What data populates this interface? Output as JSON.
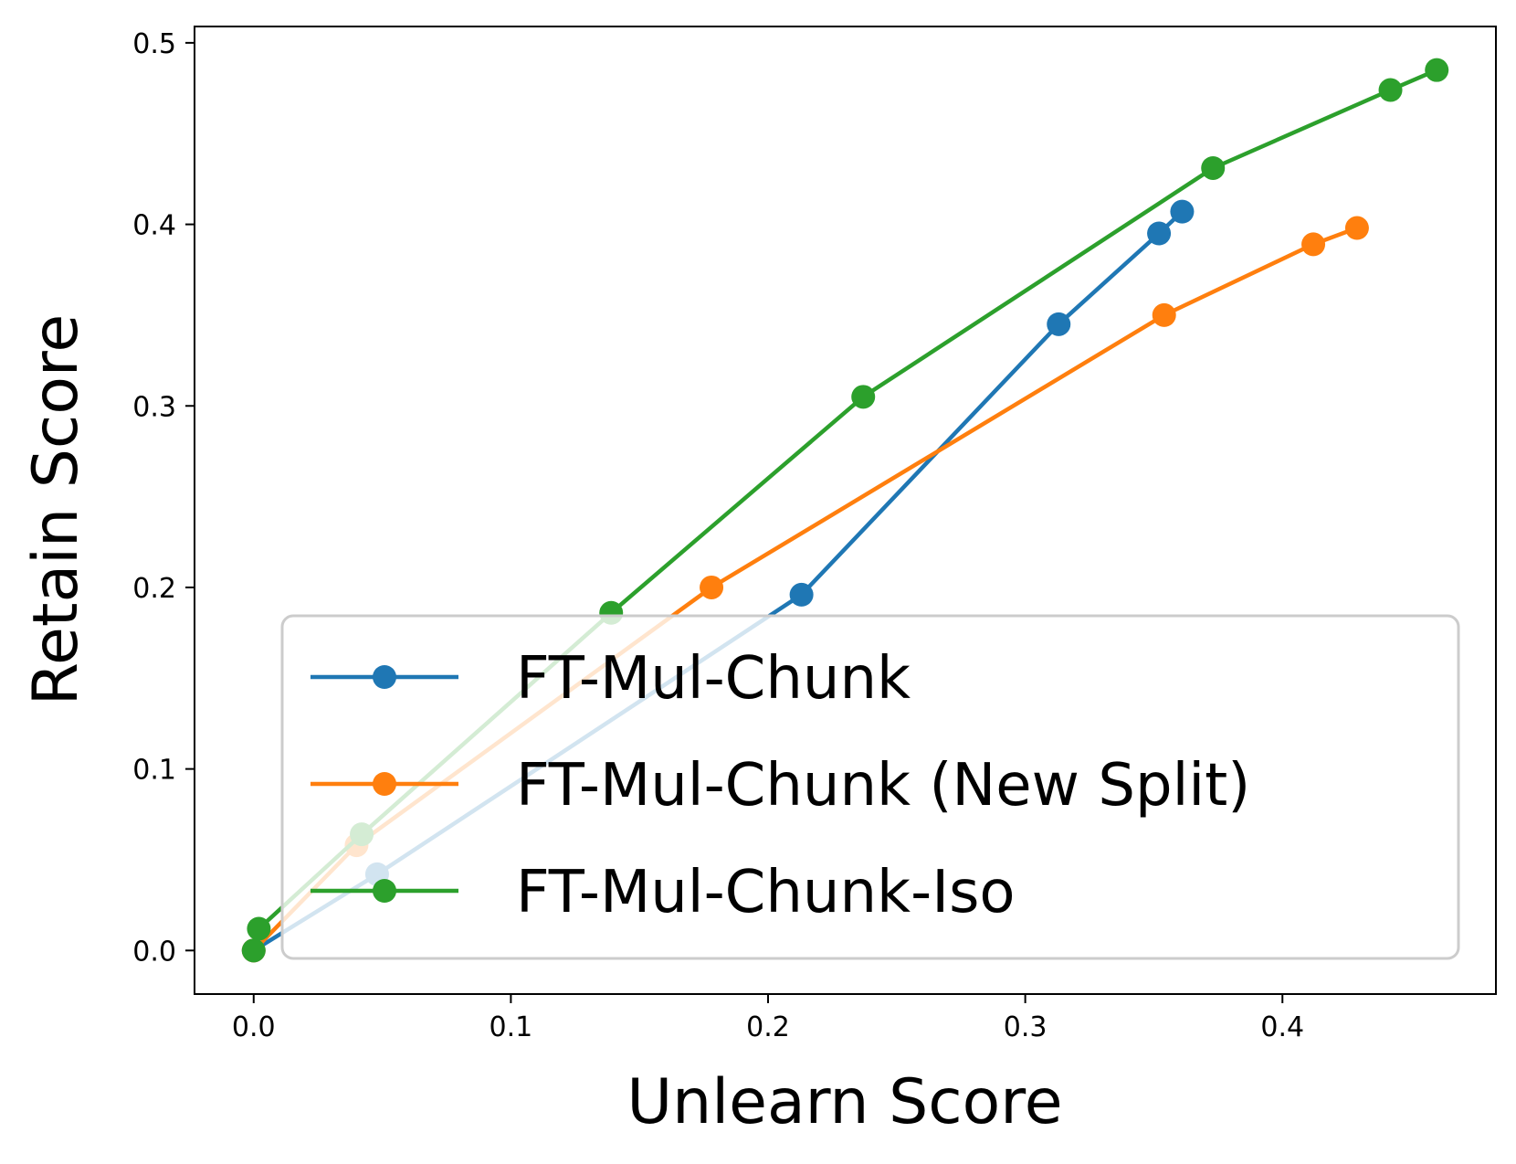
{
  "chart_data": {
    "type": "line",
    "xlabel": "Unlearn Score",
    "ylabel": "Retain Score",
    "xlim": [
      -0.023,
      0.483
    ],
    "ylim": [
      -0.024,
      0.509
    ],
    "xticks": [
      "0.0",
      "0.1",
      "0.2",
      "0.3",
      "0.4"
    ],
    "yticks": [
      "0.0",
      "0.1",
      "0.2",
      "0.3",
      "0.4",
      "0.5"
    ],
    "grid": false,
    "legend_position": "lower-right",
    "series": [
      {
        "name": "FT-Mul-Chunk",
        "color": "#1f77b4",
        "x": [
          0.0,
          0.048,
          0.213,
          0.313,
          0.352,
          0.361
        ],
        "y": [
          0.0,
          0.042,
          0.196,
          0.345,
          0.395,
          0.407
        ]
      },
      {
        "name": "FT-Mul-Chunk (New Split)",
        "color": "#ff7f0e",
        "x": [
          0.0,
          0.04,
          0.178,
          0.354,
          0.412,
          0.429
        ],
        "y": [
          0.0,
          0.058,
          0.2,
          0.35,
          0.389,
          0.398
        ]
      },
      {
        "name": "FT-Mul-Chunk-Iso",
        "color": "#2ca02c",
        "x": [
          0.0,
          0.002,
          0.042,
          0.139,
          0.237,
          0.373,
          0.442,
          0.46
        ],
        "y": [
          0.0,
          0.012,
          0.064,
          0.186,
          0.305,
          0.431,
          0.474,
          0.485
        ]
      }
    ]
  }
}
